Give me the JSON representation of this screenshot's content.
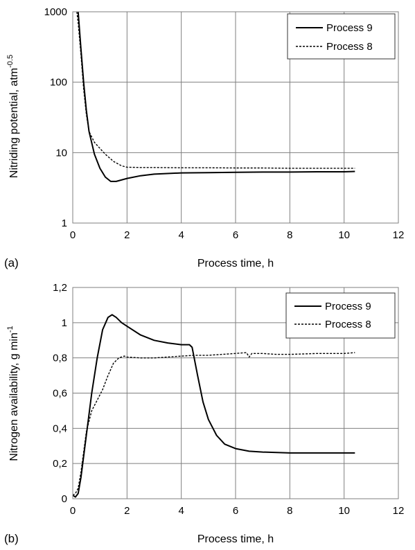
{
  "chart_data": [
    {
      "panel_label": "(a)",
      "type": "line",
      "xlabel": "Process time, h",
      "ylabel": "Nitriding potential, atm",
      "ylabel_sup": "-0.5",
      "xlim": [
        0,
        12
      ],
      "ylim": [
        1,
        1000
      ],
      "yscale": "log",
      "xticks": [
        "0",
        "2",
        "4",
        "6",
        "8",
        "10",
        "12"
      ],
      "yticks": [
        {
          "value": 1,
          "label": "1"
        },
        {
          "value": 10,
          "label": "10"
        },
        {
          "value": 100,
          "label": "100"
        },
        {
          "value": 1000,
          "label": "1000"
        }
      ],
      "grid": true,
      "legend": "top-right",
      "series": [
        {
          "name": "Process 9",
          "style": "solid",
          "x": [
            0.2,
            0.3,
            0.4,
            0.5,
            0.6,
            0.8,
            1.0,
            1.2,
            1.4,
            1.6,
            2.0,
            2.5,
            3.0,
            4.0,
            5.0,
            6.0,
            7.0,
            8.0,
            9.0,
            10.0,
            10.4
          ],
          "y": [
            1000,
            300,
            100,
            40,
            20,
            9.5,
            6.0,
            4.5,
            3.9,
            3.9,
            4.3,
            4.7,
            4.95,
            5.15,
            5.2,
            5.25,
            5.3,
            5.3,
            5.35,
            5.35,
            5.4
          ]
        },
        {
          "name": "Process 8",
          "style": "dashed",
          "x": [
            0.15,
            0.2,
            0.3,
            0.4,
            0.5,
            0.6,
            0.8,
            1.0,
            1.2,
            1.5,
            1.8,
            2.0,
            2.5,
            3.0,
            4.0,
            5.0,
            6.0,
            7.0,
            8.0,
            9.0,
            10.0,
            10.4
          ],
          "y": [
            1000,
            700,
            250,
            80,
            35,
            20,
            14,
            11.5,
            9.5,
            7.5,
            6.5,
            6.2,
            6.15,
            6.15,
            6.1,
            6.1,
            6.05,
            6.05,
            6.0,
            6.0,
            6.0,
            6.0
          ]
        }
      ]
    },
    {
      "panel_label": "(b)",
      "type": "line",
      "xlabel": "Process time, h",
      "ylabel": "Nitrogen availability, g min",
      "ylabel_sup": "-1",
      "xlim": [
        0,
        12
      ],
      "ylim": [
        0,
        1.2
      ],
      "yscale": "linear",
      "xticks": [
        "0",
        "2",
        "4",
        "6",
        "8",
        "10",
        "12"
      ],
      "yticks": [
        {
          "value": 0,
          "label": "0"
        },
        {
          "value": 0.2,
          "label": "0,2"
        },
        {
          "value": 0.4,
          "label": "0,4"
        },
        {
          "value": 0.6,
          "label": "0,6"
        },
        {
          "value": 0.8,
          "label": "0,8"
        },
        {
          "value": 1.0,
          "label": "1"
        },
        {
          "value": 1.2,
          "label": "1,2"
        }
      ],
      "grid": true,
      "legend": "top-right",
      "series": [
        {
          "name": "Process 9",
          "style": "solid",
          "x": [
            0,
            0.1,
            0.2,
            0.3,
            0.5,
            0.7,
            0.9,
            1.1,
            1.3,
            1.45,
            1.6,
            1.8,
            2.0,
            2.5,
            3.0,
            3.5,
            4.0,
            4.3,
            4.4,
            4.6,
            4.8,
            5.0,
            5.3,
            5.6,
            6.0,
            6.5,
            7.0,
            8.0,
            9.0,
            10.0,
            10.4
          ],
          "y": [
            0.02,
            0.01,
            0.03,
            0.12,
            0.36,
            0.6,
            0.8,
            0.96,
            1.03,
            1.045,
            1.03,
            1.0,
            0.98,
            0.93,
            0.9,
            0.885,
            0.875,
            0.875,
            0.86,
            0.7,
            0.55,
            0.45,
            0.36,
            0.31,
            0.285,
            0.27,
            0.265,
            0.26,
            0.26,
            0.26,
            0.26
          ]
        },
        {
          "name": "Process 8",
          "style": "dashed",
          "x": [
            0,
            0.1,
            0.2,
            0.3,
            0.5,
            0.7,
            0.9,
            1.1,
            1.3,
            1.5,
            1.7,
            1.9,
            2.0,
            2.5,
            3.0,
            3.5,
            4.0,
            4.5,
            5.0,
            5.5,
            6.0,
            6.4,
            6.5,
            6.6,
            7.0,
            7.5,
            8.0,
            9.0,
            10.0,
            10.4
          ],
          "y": [
            0.02,
            0.03,
            0.06,
            0.15,
            0.38,
            0.5,
            0.56,
            0.62,
            0.7,
            0.77,
            0.8,
            0.81,
            0.805,
            0.8,
            0.8,
            0.805,
            0.81,
            0.815,
            0.815,
            0.82,
            0.825,
            0.83,
            0.805,
            0.825,
            0.825,
            0.82,
            0.82,
            0.825,
            0.825,
            0.83
          ]
        }
      ]
    }
  ]
}
